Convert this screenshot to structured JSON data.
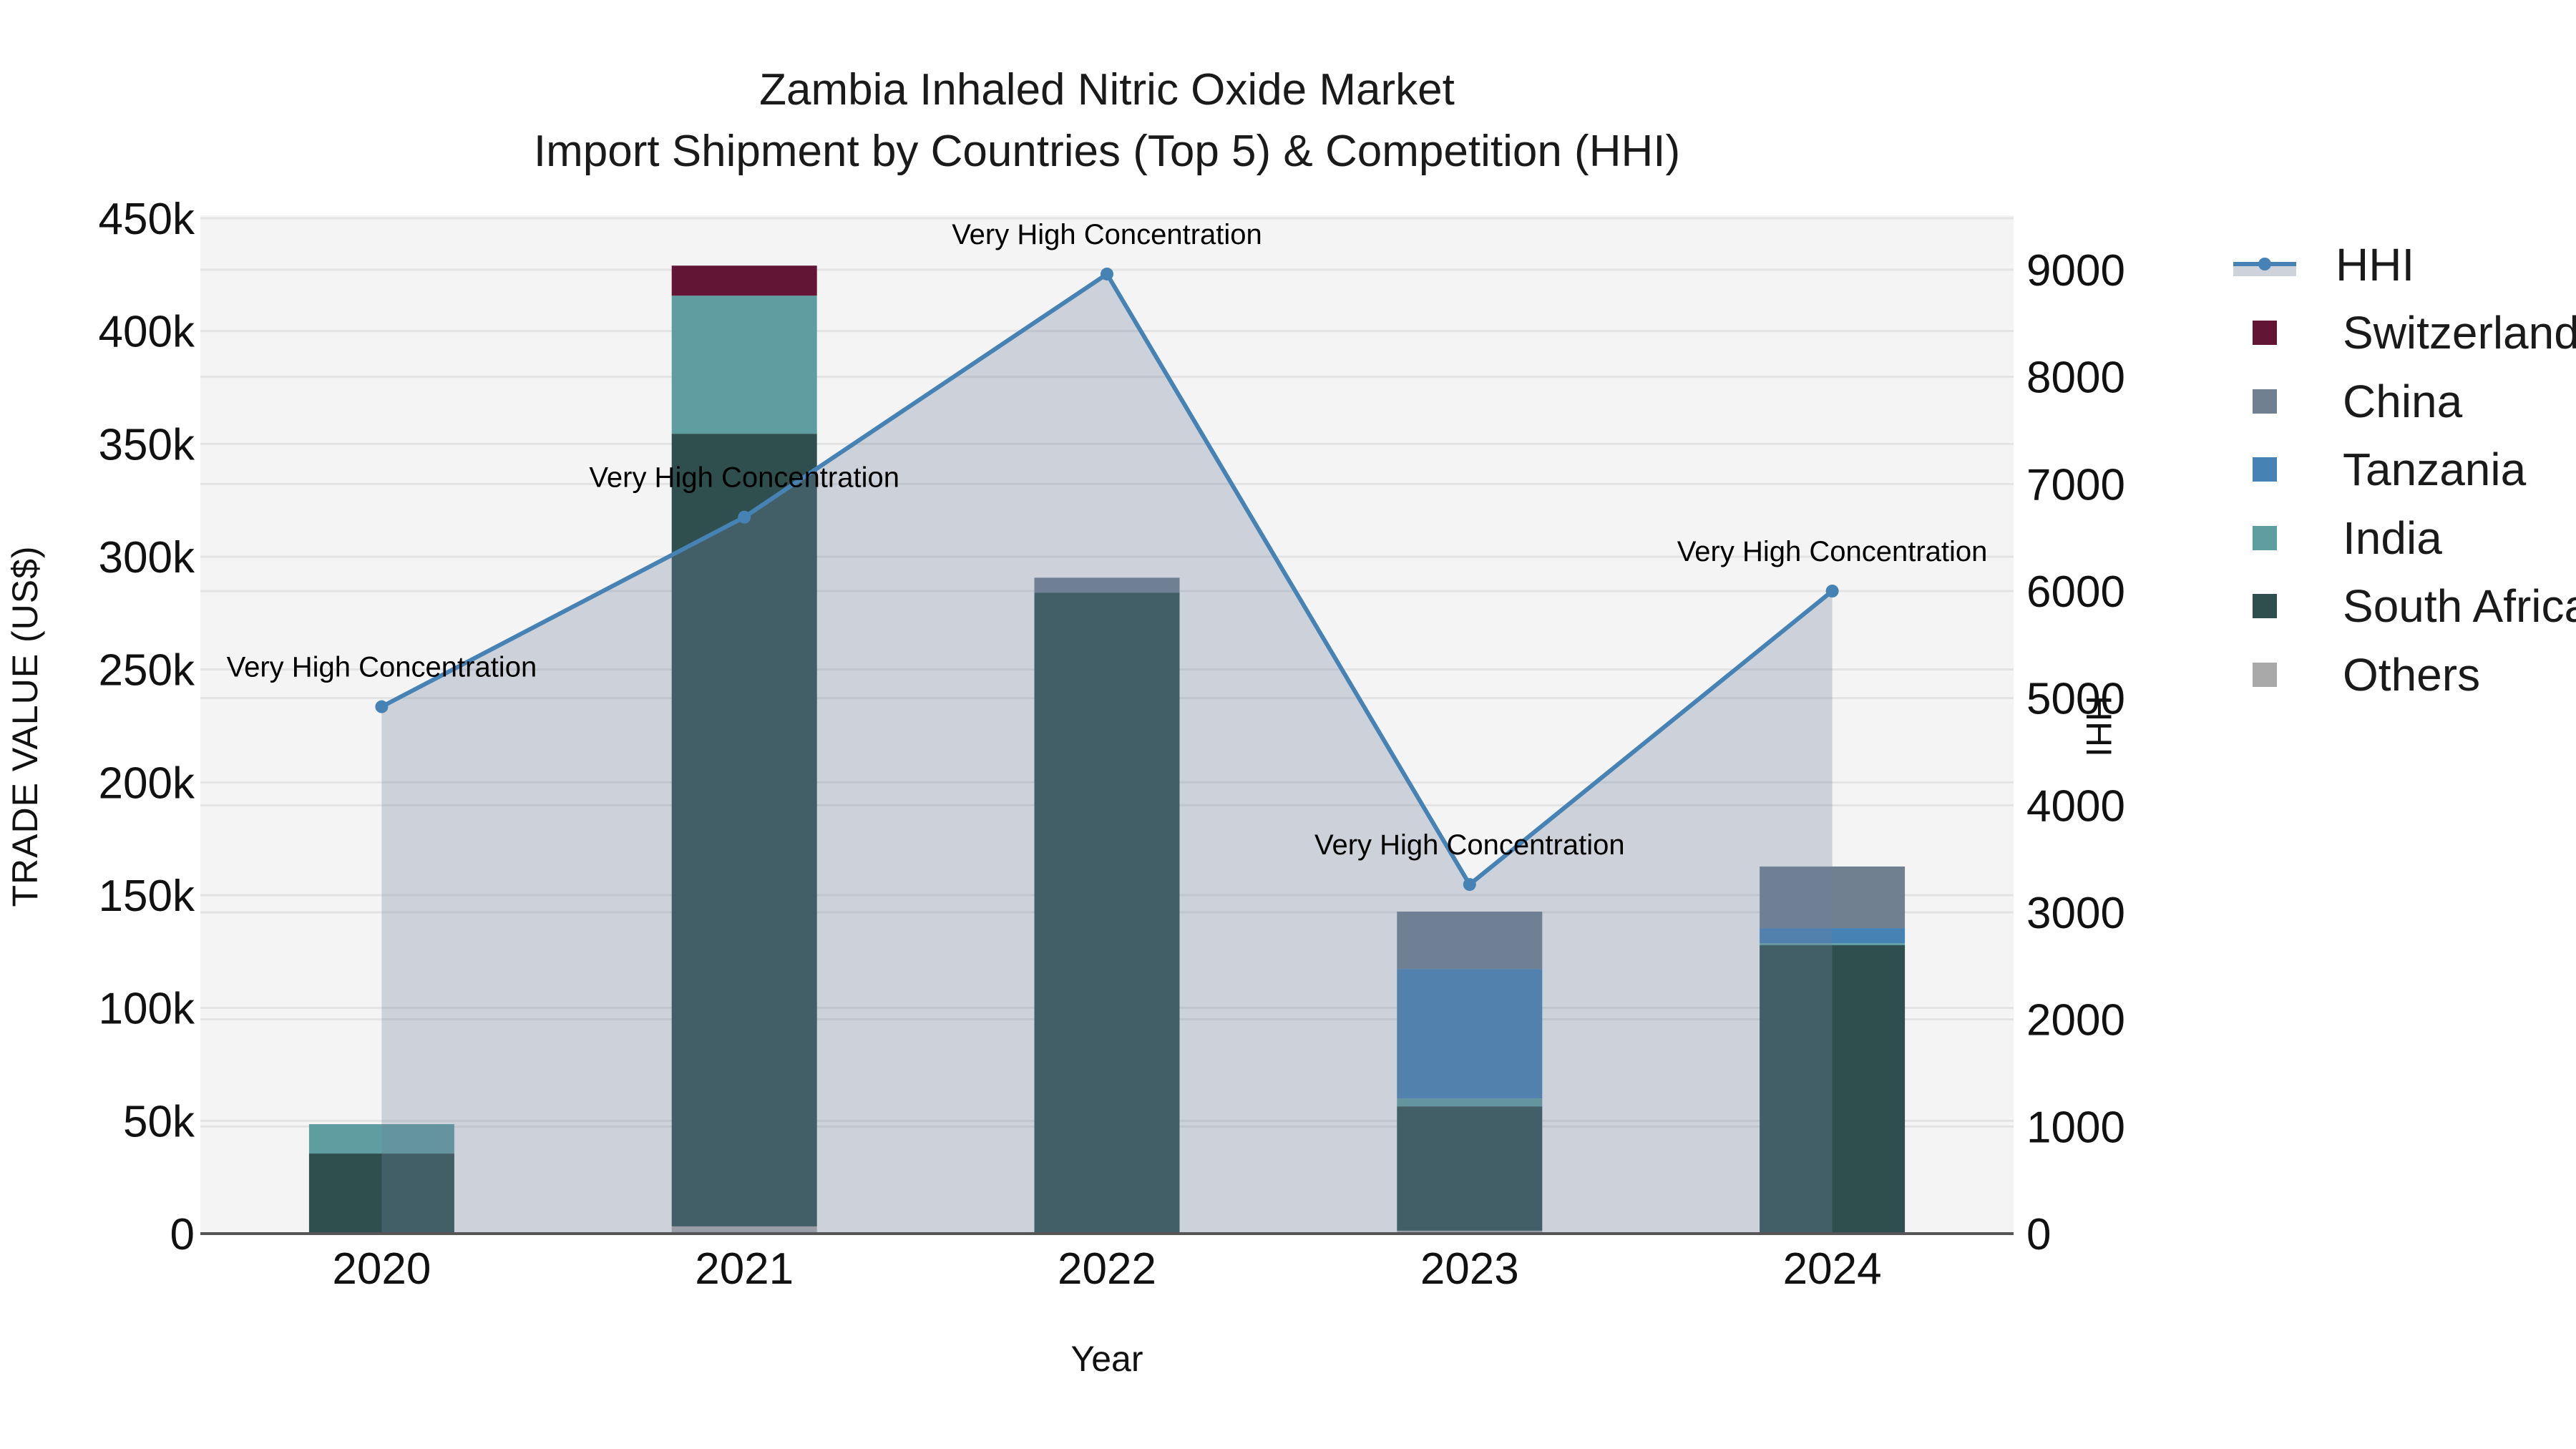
{
  "title": {
    "line1": "Zambia Inhaled Nitric Oxide Market",
    "line2": "Import Shipment by Countries (Top 5) & Competition (HHI)"
  },
  "axes": {
    "x_title": "Year",
    "y_left_title": "TRADE VALUE (US$)",
    "y_right_title": "HHI"
  },
  "legend": {
    "items": [
      {
        "label": "HHI",
        "type": "line",
        "color": "#4682b4"
      },
      {
        "label": "Switzerland",
        "type": "bar",
        "color": "#631535"
      },
      {
        "label": "China",
        "type": "bar",
        "color": "#708090"
      },
      {
        "label": "Tanzania",
        "type": "bar",
        "color": "#4682b4"
      },
      {
        "label": "India",
        "type": "bar",
        "color": "#5f9ea0"
      },
      {
        "label": "South Africa",
        "type": "bar",
        "color": "#2f4f4f"
      },
      {
        "label": "Others",
        "type": "bar",
        "color": "#a9a9a9"
      }
    ]
  },
  "chart_data": {
    "type": "bar",
    "stacked": true,
    "title": "Zambia Inhaled Nitric Oxide Market — Import Shipment by Countries (Top 5) & Competition (HHI)",
    "xlabel": "Year",
    "ylabel": "TRADE VALUE (US$)",
    "y2label": "HHI",
    "categories": [
      "2020",
      "2021",
      "2022",
      "2023",
      "2024"
    ],
    "ylim": [
      0,
      450000
    ],
    "y2lim": [
      0,
      9480
    ],
    "y_ticks": [
      {
        "value": 0,
        "label": "0"
      },
      {
        "value": 50000,
        "label": "50k"
      },
      {
        "value": 100000,
        "label": "100k"
      },
      {
        "value": 150000,
        "label": "150k"
      },
      {
        "value": 200000,
        "label": "200k"
      },
      {
        "value": 250000,
        "label": "250k"
      },
      {
        "value": 300000,
        "label": "300k"
      },
      {
        "value": 350000,
        "label": "350k"
      },
      {
        "value": 400000,
        "label": "400k"
      },
      {
        "value": 450000,
        "label": "450k"
      }
    ],
    "y2_ticks": [
      {
        "value": 0,
        "label": "0"
      },
      {
        "value": 1000,
        "label": "1000"
      },
      {
        "value": 2000,
        "label": "2000"
      },
      {
        "value": 3000,
        "label": "3000"
      },
      {
        "value": 4000,
        "label": "4000"
      },
      {
        "value": 5000,
        "label": "5000"
      },
      {
        "value": 6000,
        "label": "6000"
      },
      {
        "value": 7000,
        "label": "7000"
      },
      {
        "value": 8000,
        "label": "8000"
      },
      {
        "value": 9000,
        "label": "9000"
      }
    ],
    "series": [
      {
        "name": "Others",
        "color": "#a9a9a9",
        "values": [
          0,
          3200,
          0,
          1300,
          0
        ]
      },
      {
        "name": "South Africa",
        "color": "#2f4f4f",
        "values": [
          35500,
          351300,
          284100,
          55100,
          127800
        ]
      },
      {
        "name": "India",
        "color": "#5f9ea0",
        "values": [
          13000,
          61200,
          0,
          3500,
          900
        ]
      },
      {
        "name": "Tanzania",
        "color": "#4682b4",
        "values": [
          0,
          0,
          0,
          57400,
          6700
        ]
      },
      {
        "name": "China",
        "color": "#708090",
        "values": [
          0,
          0,
          6600,
          25400,
          27300
        ]
      },
      {
        "name": "Switzerland",
        "color": "#631535",
        "values": [
          0,
          13300,
          0,
          0,
          0
        ]
      }
    ],
    "line_series": {
      "name": "HHI",
      "axis": "right",
      "color": "#4682b4",
      "fill": "tozeroy",
      "values": [
        4920,
        6690,
        8960,
        3260,
        6000
      ],
      "annotations": [
        "Very High Concentration",
        "Very High Concentration",
        "Very High Concentration",
        "Very High Concentration",
        "Very High Concentration"
      ]
    },
    "grid": true,
    "legend_position": "right"
  }
}
